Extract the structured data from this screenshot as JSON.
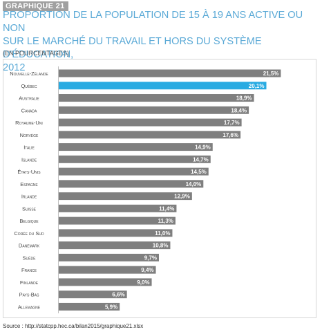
{
  "header": {
    "badge": "GRAPHIQUE 21",
    "title_lines": [
      "PROPORTION DE LA POPULATION DE 15 À 19 ANS ACTIVE OU NON",
      "SUR LE MARCHÉ DU TRAVAIL ET HORS DU SYSTÈME D'ÉDUCATION,",
      "2012"
    ],
    "unit": "(EN POURCENTAGES)"
  },
  "footer": {
    "source": "Source : http://statcpp.hec.ca/bilan2015/graphique21.xlsx"
  },
  "colors": {
    "bar": "#7f7f7f",
    "highlight": "#29abe2",
    "title": "#5aa9d6"
  },
  "chart_data": {
    "type": "bar",
    "orientation": "horizontal",
    "title": "PROPORTION DE LA POPULATION DE 15 À 19 ANS ACTIVE OU NON SUR LE MARCHÉ DU TRAVAIL ET HORS DU SYSTÈME D'ÉDUCATION, 2012",
    "categories": [
      "Nouvelle-Zélande",
      "Québec",
      "Australie",
      "Canada",
      "Royaume-Uni",
      "Norvège",
      "Italie",
      "Islande",
      "États-Unis",
      "Espagne",
      "Irlande",
      "Suisse",
      "Belgique",
      "Corée du Sud",
      "Danemark",
      "Suède",
      "France",
      "Finlande",
      "Pays-Bas",
      "Allemagne"
    ],
    "values": [
      21.5,
      20.1,
      18.9,
      18.4,
      17.7,
      17.6,
      14.9,
      14.7,
      14.5,
      14.0,
      12.9,
      11.4,
      11.3,
      11.0,
      10.8,
      9.7,
      9.4,
      9.0,
      6.6,
      5.9
    ],
    "labels": [
      "21,5%",
      "20,1%",
      "18,9%",
      "18,4%",
      "17,7%",
      "17,6%",
      "14,9%",
      "14,7%",
      "14,5%",
      "14,0%",
      "12,9%",
      "11,4%",
      "11,3%",
      "11,0%",
      "10,8%",
      "9,7%",
      "9,4%",
      "9,0%",
      "6,6%",
      "5,9%"
    ],
    "highlight_category": "Québec",
    "xlim": [
      0,
      25
    ],
    "grid": false,
    "legend": "none"
  }
}
